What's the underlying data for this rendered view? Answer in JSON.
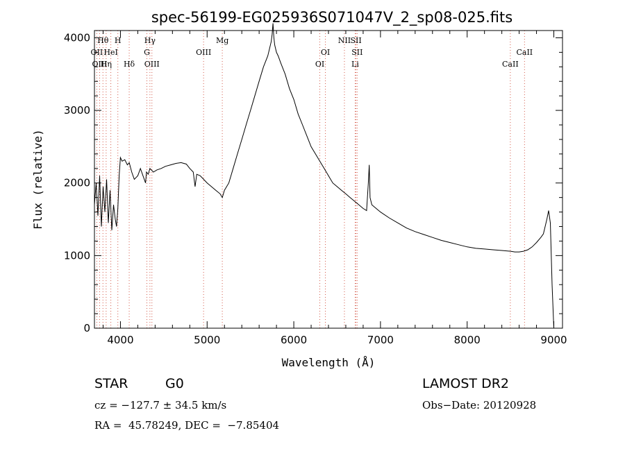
{
  "chart_data": {
    "type": "line",
    "title": "spec-56199-EG025936S071047V_2_sp08-025.fits",
    "xlabel": "Wavelength (Å)",
    "ylabel": "Flux (relative)",
    "xlim": [
      3700,
      9100
    ],
    "ylim": [
      0,
      4100
    ],
    "x_ticks": [
      4000,
      5000,
      6000,
      7000,
      8000,
      9000
    ],
    "y_ticks": [
      0,
      1000,
      2000,
      3000,
      4000
    ],
    "x_tick_labels": [
      "4000",
      "5000",
      "6000",
      "7000",
      "8000",
      "9000"
    ],
    "y_tick_labels": [
      "0",
      "1000",
      "2000",
      "3000",
      "4000"
    ],
    "grid": false,
    "series": [
      {
        "x": [
          3700,
          3720,
          3740,
          3760,
          3780,
          3800,
          3820,
          3840,
          3860,
          3880,
          3900,
          3920,
          3940,
          3955,
          3970,
          3985,
          4000,
          4020,
          4050,
          4080,
          4101,
          4130,
          4160,
          4200,
          4230,
          4260,
          4290,
          4300,
          4320,
          4340,
          4380,
          4420,
          4470,
          4520,
          4580,
          4640,
          4700,
          4760,
          4800,
          4840,
          4861,
          4880,
          4920,
          4960,
          5000,
          5050,
          5100,
          5150,
          5175,
          5200,
          5250,
          5300,
          5350,
          5400,
          5450,
          5500,
          5550,
          5600,
          5650,
          5700,
          5720,
          5740,
          5750,
          5760,
          5770,
          5780,
          5800,
          5820,
          5850,
          5900,
          5950,
          6000,
          6050,
          6100,
          6150,
          6200,
          6250,
          6300,
          6350,
          6400,
          6450,
          6500,
          6550,
          6600,
          6650,
          6700,
          6750,
          6800,
          6840,
          6860,
          6870,
          6880,
          6900,
          6950,
          7000,
          7100,
          7200,
          7300,
          7400,
          7500,
          7600,
          7700,
          7800,
          7900,
          8000,
          8100,
          8200,
          8300,
          8400,
          8500,
          8550,
          8600,
          8650,
          8700,
          8750,
          8800,
          8850,
          8880,
          8900,
          8920,
          8940,
          8960,
          8980,
          9000
        ],
        "values": [
          1700,
          2000,
          1550,
          2100,
          1400,
          1950,
          1600,
          2050,
          1450,
          1900,
          1350,
          1700,
          1500,
          1400,
          1650,
          2100,
          2350,
          2300,
          2320,
          2250,
          2280,
          2150,
          2050,
          2100,
          2200,
          2100,
          2000,
          2150,
          2120,
          2200,
          2150,
          2180,
          2200,
          2230,
          2250,
          2270,
          2280,
          2260,
          2200,
          2150,
          1950,
          2120,
          2100,
          2050,
          2000,
          1950,
          1900,
          1850,
          1800,
          1900,
          2000,
          2200,
          2400,
          2600,
          2800,
          3000,
          3200,
          3400,
          3600,
          3750,
          3850,
          3950,
          4050,
          4200,
          4000,
          3900,
          3800,
          3750,
          3650,
          3500,
          3300,
          3150,
          2950,
          2800,
          2650,
          2500,
          2400,
          2300,
          2200,
          2100,
          2000,
          1950,
          1900,
          1850,
          1800,
          1750,
          1700,
          1650,
          1620,
          2000,
          2250,
          1800,
          1700,
          1650,
          1600,
          1520,
          1450,
          1380,
          1330,
          1290,
          1250,
          1210,
          1180,
          1150,
          1120,
          1100,
          1090,
          1080,
          1070,
          1060,
          1050,
          1050,
          1060,
          1080,
          1120,
          1180,
          1250,
          1300,
          1400,
          1500,
          1620,
          1450,
          600,
          0
        ]
      }
    ],
    "lines": [
      {
        "label": "Hθ",
        "x": 3798,
        "row": 0
      },
      {
        "label": "OII",
        "x": 3727,
        "row": 1
      },
      {
        "label": "OIII",
        "x": 3760,
        "row": 2
      },
      {
        "label": "Hη",
        "x": 3835,
        "row": 2
      },
      {
        "label": "HeI",
        "x": 3889,
        "row": 1
      },
      {
        "label": "H",
        "x": 3970,
        "row": 0
      },
      {
        "label": "Hδ",
        "x": 4101,
        "row": 2
      },
      {
        "label": "Hγ",
        "x": 4340,
        "row": 0
      },
      {
        "label": "G",
        "x": 4305,
        "row": 1
      },
      {
        "label": "OIII",
        "x": 4363,
        "row": 2
      },
      {
        "label": "OIII",
        "x": 4959,
        "row": 1
      },
      {
        "label": "Mg",
        "x": 5175,
        "row": 0
      },
      {
        "label": "OI",
        "x": 6300,
        "row": 2
      },
      {
        "label": "OI",
        "x": 6364,
        "row": 1
      },
      {
        "label": "NII",
        "x": 6584,
        "row": 0
      },
      {
        "label": "SII",
        "x": 6717,
        "row": 0
      },
      {
        "label": "SII",
        "x": 6731,
        "row": 1
      },
      {
        "label": "Li",
        "x": 6708,
        "row": 2
      },
      {
        "label": "CaII",
        "x": 8498,
        "row": 2
      },
      {
        "label": "CaII",
        "x": 8662,
        "row": 1
      }
    ],
    "line_color": "#d45a4a"
  },
  "info": {
    "class": "STAR",
    "subclass": "G0",
    "survey": "LAMOST DR2",
    "cz": "cz = −127.7 ± 34.5 km/s",
    "obs_date": "Obs−Date: 20120928",
    "coords": "RA =  45.78249, DEC =  −7.85404"
  }
}
